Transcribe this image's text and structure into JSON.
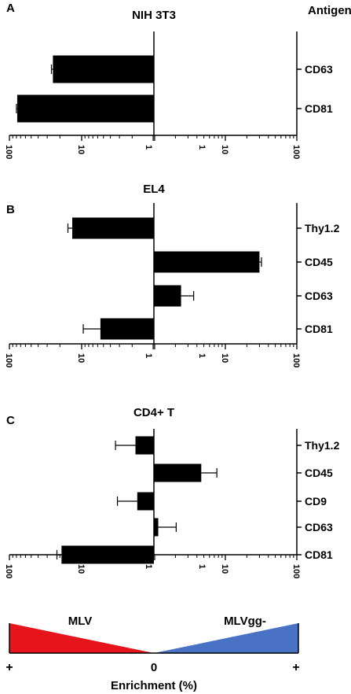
{
  "figure": {
    "header": "Antigen",
    "enrichment_label": "Enrichment (%)",
    "triangle": {
      "left_label": "MLV",
      "right_label": "MLVgg-",
      "left_color": "#e8141b",
      "right_color": "#4a72c4",
      "plus_left": "+",
      "zero": "0",
      "plus_right": "+"
    }
  },
  "chart_data": [
    {
      "type": "bar",
      "orientation": "horizontal",
      "panel_letter": "A",
      "title": "NIH 3T3",
      "scale": "log, mirrored about 1 (left = MLV enrichment, right = MLVgg- enrichment)",
      "tick_labels": [
        "100",
        "10",
        "1",
        "1",
        "10",
        "100"
      ],
      "categories": [
        "CD63",
        "CD81"
      ],
      "values": [
        -25,
        -78
      ],
      "errors": [
        1.2,
        2.0
      ]
    },
    {
      "type": "bar",
      "orientation": "horizontal",
      "panel_letter": "B",
      "title": "EL4",
      "scale": "log, mirrored about 1 (left = MLV enrichment, right = MLVgg- enrichment)",
      "tick_labels": [
        "100",
        "10",
        "1",
        "1",
        "10",
        "100"
      ],
      "categories": [
        "Thy1.2",
        "CD45",
        "CD63",
        "CD81"
      ],
      "values": [
        -13.5,
        30,
        2.4,
        -5.5
      ],
      "errors": [
        2.0,
        2.0,
        1.2,
        4.0
      ]
    },
    {
      "type": "bar",
      "orientation": "horizontal",
      "panel_letter": "C",
      "title": "CD4+ T",
      "scale": "log, mirrored about 1 (left = MLV enrichment, right = MLVgg- enrichment)",
      "tick_labels": [
        "100",
        "10",
        "1",
        "1",
        "10",
        "100"
      ],
      "categories": [
        "Thy1.2",
        "CD45",
        "CD9",
        "CD63",
        "CD81"
      ],
      "values": [
        -1.8,
        4.6,
        -1.7,
        1.15,
        -19
      ],
      "errors": [
        1.6,
        3.0,
        1.5,
        0.9,
        3.0
      ]
    }
  ]
}
